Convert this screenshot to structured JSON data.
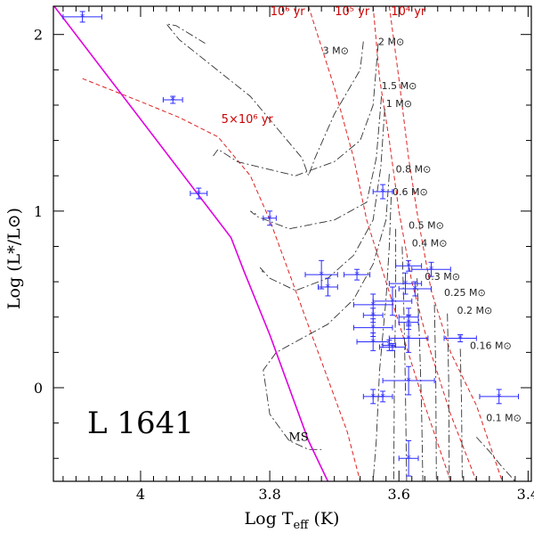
{
  "chart_data": {
    "type": "scatter",
    "title": "",
    "annotation": "L 1641",
    "xlabel_main": "Log T",
    "xlabel_sub": "eff",
    "xlabel_unit": " (K)",
    "ylabel": "Log (L*/L⊙)",
    "xlim": [
      4.135,
      3.395
    ],
    "ylim": [
      -0.53,
      2.16
    ],
    "x_ticks": [
      4.0,
      3.8,
      3.6,
      3.4
    ],
    "x_tick_labels": [
      "4",
      "3.8",
      "3.6",
      "3.4"
    ],
    "y_ticks": [
      0,
      1,
      2
    ],
    "y_tick_labels": [
      "0",
      "1",
      "2"
    ],
    "main_sequence": {
      "label": "MS",
      "color": "#e000e0",
      "points": [
        [
          4.14,
          2.19
        ],
        [
          3.86,
          0.85
        ],
        [
          3.84,
          0.66
        ],
        [
          3.8,
          0.3
        ],
        [
          3.77,
          0.0
        ],
        [
          3.74,
          -0.3
        ],
        [
          3.71,
          -0.53
        ]
      ]
    },
    "isochrones": [
      {
        "label": "10⁶ yr",
        "points": [
          [
            3.74,
            2.16
          ],
          [
            3.7,
            1.7
          ],
          [
            3.67,
            1.3
          ],
          [
            3.65,
            0.95
          ],
          [
            3.62,
            0.6
          ],
          [
            3.59,
            0.25
          ],
          [
            3.56,
            -0.1
          ],
          [
            3.52,
            -0.53
          ]
        ]
      },
      {
        "label": "10⁵ yr",
        "points": [
          [
            3.64,
            2.16
          ],
          [
            3.63,
            1.75
          ],
          [
            3.615,
            1.4
          ],
          [
            3.6,
            1.0
          ],
          [
            3.58,
            0.6
          ],
          [
            3.555,
            0.25
          ],
          [
            3.52,
            -0.15
          ],
          [
            3.48,
            -0.53
          ]
        ]
      },
      {
        "label": "10⁴ yr",
        "points": [
          [
            3.615,
            2.16
          ],
          [
            3.6,
            1.75
          ],
          [
            3.585,
            1.3
          ],
          [
            3.57,
            0.95
          ],
          [
            3.55,
            0.55
          ],
          [
            3.52,
            0.2
          ],
          [
            3.48,
            -0.1
          ],
          [
            3.44,
            -0.53
          ]
        ]
      },
      {
        "label": "5×10⁶ yr",
        "points": [
          [
            4.09,
            1.75
          ],
          [
            4.0,
            1.62
          ],
          [
            3.94,
            1.53
          ],
          [
            3.88,
            1.42
          ],
          [
            3.83,
            1.2
          ],
          [
            3.8,
            0.95
          ],
          [
            3.77,
            0.65
          ],
          [
            3.74,
            0.35
          ],
          [
            3.71,
            0.05
          ],
          [
            3.68,
            -0.25
          ],
          [
            3.66,
            -0.53
          ]
        ]
      }
    ],
    "tracks": [
      {
        "label": "3 M⊙",
        "points": [
          [
            3.655,
            1.96
          ],
          [
            3.66,
            1.8
          ],
          [
            3.7,
            1.55
          ],
          [
            3.73,
            1.3
          ],
          [
            3.74,
            1.2
          ],
          [
            3.75,
            1.3
          ],
          [
            3.83,
            1.65
          ],
          [
            3.94,
            1.97
          ],
          [
            3.96,
            2.06
          ],
          [
            3.945,
            2.05
          ],
          [
            3.9,
            1.95
          ]
        ]
      },
      {
        "label": "2 M⊙",
        "points": [
          [
            3.632,
            1.95
          ],
          [
            3.64,
            1.6
          ],
          [
            3.66,
            1.4
          ],
          [
            3.7,
            1.28
          ],
          [
            3.76,
            1.2
          ],
          [
            3.85,
            1.28
          ],
          [
            3.88,
            1.35
          ],
          [
            3.89,
            1.3
          ]
        ]
      },
      {
        "label": "1.5 M⊙",
        "points": [
          [
            3.627,
            1.65
          ],
          [
            3.635,
            1.3
          ],
          [
            3.65,
            1.05
          ],
          [
            3.7,
            0.95
          ],
          [
            3.77,
            0.9
          ],
          [
            3.82,
            0.97
          ],
          [
            3.83,
            1.0
          ],
          [
            3.82,
            0.98
          ]
        ]
      },
      {
        "label": "1 M⊙",
        "points": [
          [
            3.622,
            1.58
          ],
          [
            3.628,
            1.25
          ],
          [
            3.64,
            0.95
          ],
          [
            3.67,
            0.75
          ],
          [
            3.71,
            0.62
          ],
          [
            3.76,
            0.55
          ],
          [
            3.8,
            0.62
          ],
          [
            3.815,
            0.68
          ],
          [
            3.81,
            0.65
          ]
        ]
      },
      {
        "label": "0.8 M⊙",
        "points": [
          [
            3.615,
            1.21
          ],
          [
            3.62,
            0.95
          ],
          [
            3.64,
            0.7
          ],
          [
            3.67,
            0.5
          ],
          [
            3.71,
            0.36
          ],
          [
            3.75,
            0.28
          ],
          [
            3.79,
            0.2
          ],
          [
            3.81,
            0.1
          ],
          [
            3.8,
            -0.15
          ],
          [
            3.77,
            -0.3
          ],
          [
            3.74,
            -0.35
          ],
          [
            3.72,
            -0.35
          ]
        ]
      },
      {
        "label": "0.6 M⊙",
        "points": [
          [
            3.612,
            1.08
          ],
          [
            3.615,
            0.8
          ],
          [
            3.62,
            0.5
          ],
          [
            3.63,
            0.1
          ],
          [
            3.635,
            -0.3
          ],
          [
            3.64,
            -0.53
          ]
        ]
      },
      {
        "label": "0.5 M⊙",
        "points": [
          [
            3.605,
            0.9
          ],
          [
            3.605,
            0.5
          ],
          [
            3.607,
            0.1
          ],
          [
            3.608,
            -0.53
          ]
        ]
      },
      {
        "label": "0.4 M⊙",
        "points": [
          [
            3.595,
            0.8
          ],
          [
            3.592,
            0.4
          ],
          [
            3.59,
            0.0
          ],
          [
            3.588,
            -0.53
          ]
        ]
      },
      {
        "label": "0.3 M⊙",
        "points": [
          [
            3.572,
            0.62
          ],
          [
            3.568,
            0.25
          ],
          [
            3.565,
            -0.1
          ],
          [
            3.563,
            -0.53
          ]
        ]
      },
      {
        "label": "0.25 M⊙",
        "points": [
          [
            3.545,
            0.47
          ],
          [
            3.543,
            0.1
          ],
          [
            3.542,
            -0.53
          ]
        ]
      },
      {
        "label": "0.2 M⊙",
        "points": [
          [
            3.525,
            0.42
          ],
          [
            3.523,
            0.05
          ],
          [
            3.522,
            -0.53
          ]
        ]
      },
      {
        "label": "0.16 M⊙",
        "points": [
          [
            3.505,
            0.22
          ],
          [
            3.503,
            -0.1
          ],
          [
            3.502,
            -0.53
          ]
        ]
      },
      {
        "label": "0.1 M⊙",
        "points": [
          [
            3.48,
            -0.28
          ],
          [
            3.46,
            -0.36
          ],
          [
            3.44,
            -0.45
          ],
          [
            3.42,
            -0.53
          ]
        ]
      }
    ],
    "stars": [
      {
        "x": 4.09,
        "y": 2.1,
        "xerr": 0.03,
        "yerr": 0.03
      },
      {
        "x": 3.95,
        "y": 1.63,
        "xerr": 0.015,
        "yerr": 0.02
      },
      {
        "x": 3.91,
        "y": 1.1,
        "xerr": 0.013,
        "yerr": 0.03
      },
      {
        "x": 3.8,
        "y": 0.96,
        "xerr": 0.01,
        "yerr": 0.04
      },
      {
        "x": 3.72,
        "y": 0.64,
        "xerr": 0.025,
        "yerr": 0.08
      },
      {
        "x": 3.71,
        "y": 0.57,
        "xerr": 0.015,
        "yerr": 0.05
      },
      {
        "x": 3.665,
        "y": 0.64,
        "xerr": 0.02,
        "yerr": 0.03
      },
      {
        "x": 3.625,
        "y": 1.11,
        "xerr": 0.015,
        "yerr": 0.04
      },
      {
        "x": 3.64,
        "y": 0.47,
        "xerr": 0.03,
        "yerr": 0.06
      },
      {
        "x": 3.64,
        "y": 0.41,
        "xerr": 0.015,
        "yerr": 0.04
      },
      {
        "x": 3.64,
        "y": 0.34,
        "xerr": 0.03,
        "yerr": 0.05
      },
      {
        "x": 3.64,
        "y": 0.26,
        "xerr": 0.025,
        "yerr": 0.05
      },
      {
        "x": 3.61,
        "y": 0.49,
        "xerr": 0.03,
        "yerr": 0.08
      },
      {
        "x": 3.59,
        "y": 0.59,
        "xerr": 0.025,
        "yerr": 0.06
      },
      {
        "x": 3.585,
        "y": 0.69,
        "xerr": 0.02,
        "yerr": 0.03
      },
      {
        "x": 3.585,
        "y": 0.4,
        "xerr": 0.015,
        "yerr": 0.05
      },
      {
        "x": 3.585,
        "y": 0.37,
        "xerr": 0.015,
        "yerr": 0.04
      },
      {
        "x": 3.575,
        "y": 0.56,
        "xerr": 0.025,
        "yerr": 0.04
      },
      {
        "x": 3.55,
        "y": 0.67,
        "xerr": 0.03,
        "yerr": 0.04
      },
      {
        "x": 3.585,
        "y": 0.28,
        "xerr": 0.03,
        "yerr": 0.08
      },
      {
        "x": 3.615,
        "y": 0.24,
        "xerr": 0.01,
        "yerr": 0.03
      },
      {
        "x": 3.61,
        "y": 0.23,
        "xerr": 0.02,
        "yerr": 0.02
      },
      {
        "x": 3.585,
        "y": 0.04,
        "xerr": 0.04,
        "yerr": 0.08
      },
      {
        "x": 3.64,
        "y": -0.05,
        "xerr": 0.015,
        "yerr": 0.04
      },
      {
        "x": 3.625,
        "y": -0.05,
        "xerr": 0.015,
        "yerr": 0.03
      },
      {
        "x": 3.585,
        "y": -0.4,
        "xerr": 0.015,
        "yerr": 0.1
      },
      {
        "x": 3.505,
        "y": 0.28,
        "xerr": 0.025,
        "yerr": 0.02
      },
      {
        "x": 3.445,
        "y": -0.05,
        "xerr": 0.03,
        "yerr": 0.04
      }
    ]
  }
}
